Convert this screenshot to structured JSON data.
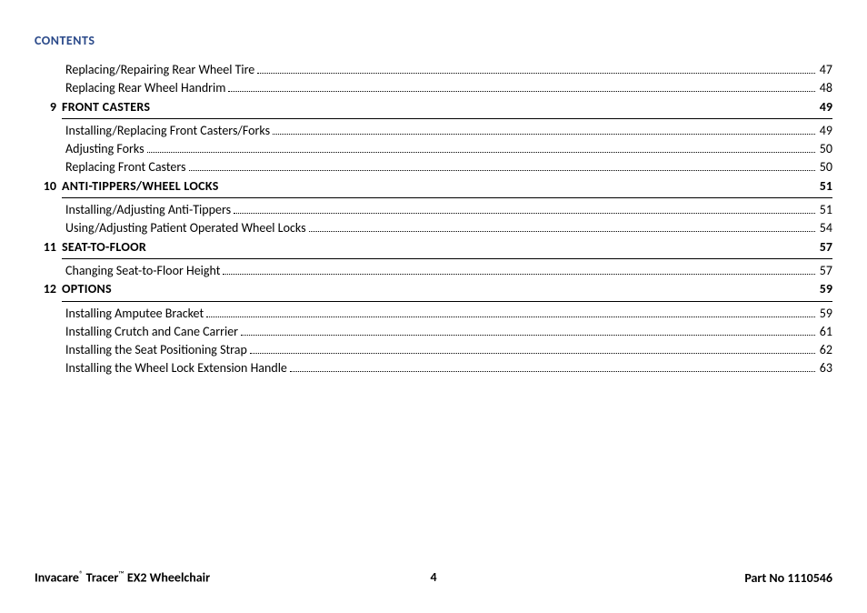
{
  "header": "CONTENTS",
  "entries": [
    {
      "kind": "item",
      "title": "Replacing/Repairing Rear Wheel Tire",
      "page": "47"
    },
    {
      "kind": "item",
      "title": "Replacing Rear Wheel Handrim",
      "page": "48"
    },
    {
      "kind": "section",
      "num": "9",
      "title": "FRONT CASTERS",
      "page": "49"
    },
    {
      "kind": "hr"
    },
    {
      "kind": "item",
      "title": "Installing/Replacing Front Casters/Forks",
      "page": "49"
    },
    {
      "kind": "item",
      "title": "Adjusting Forks",
      "page": "50"
    },
    {
      "kind": "item",
      "title": "Replacing Front Casters",
      "page": "50"
    },
    {
      "kind": "section",
      "num": "10",
      "title": "ANTI-TIPPERS/WHEEL LOCKS",
      "page": "51"
    },
    {
      "kind": "hr"
    },
    {
      "kind": "item",
      "title": "Installing/Adjusting Anti-Tippers",
      "page": "51"
    },
    {
      "kind": "item",
      "title": "Using/Adjusting Patient Operated Wheel Locks",
      "page": "54"
    },
    {
      "kind": "section",
      "num": "11",
      "title": "SEAT-TO-FLOOR",
      "page": "57"
    },
    {
      "kind": "hr"
    },
    {
      "kind": "item",
      "title": "Changing Seat-to-Floor Height",
      "page": "57"
    },
    {
      "kind": "section",
      "num": "12",
      "title": "OPTIONS",
      "page": "59"
    },
    {
      "kind": "hr"
    },
    {
      "kind": "item",
      "title": "Installing Amputee Bracket",
      "page": "59"
    },
    {
      "kind": "item",
      "title": "Installing Crutch and Cane Carrier",
      "page": "61"
    },
    {
      "kind": "item",
      "title": "Installing the Seat Positioning Strap",
      "page": "62"
    },
    {
      "kind": "item",
      "title": "Installing the Wheel Lock Extension Handle",
      "page": "63"
    }
  ],
  "footer": {
    "brand1": "Invacare",
    "reg": "®",
    "brand2": " Tracer",
    "tm": "™",
    "product": "  EX2 Wheelchair",
    "page_number": "4",
    "part_label": "Part No 1110546"
  },
  "colors": {
    "header_color": "#2b4a8a",
    "text_color": "#000000",
    "bg_color": "#ffffff"
  }
}
